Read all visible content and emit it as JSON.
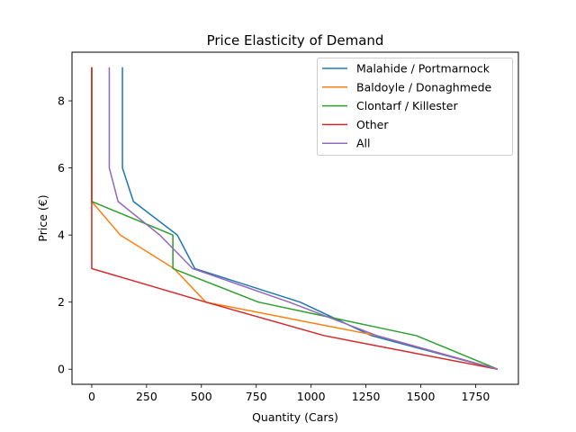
{
  "chart_data": {
    "type": "line",
    "title": "Price Elasticity of Demand",
    "xlabel": "Quantity (Cars)",
    "ylabel": "Price (€)",
    "xlim": [
      -90,
      1945
    ],
    "ylim": [
      -0.45,
      9.45
    ],
    "xticks": [
      0,
      250,
      500,
      750,
      1000,
      1250,
      1500,
      1750
    ],
    "yticks": [
      0,
      2,
      4,
      6,
      8
    ],
    "grid": false,
    "legend_position": "top-right",
    "series": [
      {
        "name": "Malahide / Portmarnock",
        "color": "#1f77b4",
        "points": [
          [
            1850,
            0
          ],
          [
            1275,
            1
          ],
          [
            950,
            2
          ],
          [
            470,
            3
          ],
          [
            390,
            4
          ],
          [
            190,
            5
          ],
          [
            140,
            6
          ],
          [
            140,
            7
          ],
          [
            140,
            8
          ],
          [
            140,
            9
          ]
        ]
      },
      {
        "name": "Baldoyle / Donaghmede",
        "color": "#ff7f0e",
        "points": [
          [
            1850,
            0
          ],
          [
            1300,
            1
          ],
          [
            520,
            2
          ],
          [
            375,
            3
          ],
          [
            130,
            4
          ],
          [
            0,
            5
          ],
          [
            0,
            6
          ],
          [
            0,
            7
          ],
          [
            0,
            8
          ],
          [
            0,
            9
          ]
        ]
      },
      {
        "name": "Clontarf / Killester",
        "color": "#2ca02c",
        "points": [
          [
            1850,
            0
          ],
          [
            1480,
            1
          ],
          [
            760,
            2
          ],
          [
            370,
            3
          ],
          [
            370,
            4
          ],
          [
            0,
            5
          ],
          [
            0,
            6
          ],
          [
            0,
            7
          ],
          [
            0,
            8
          ],
          [
            0,
            9
          ]
        ]
      },
      {
        "name": "Other",
        "color": "#d62728",
        "points": [
          [
            1850,
            0
          ],
          [
            1060,
            1
          ],
          [
            520,
            2
          ],
          [
            0,
            3
          ],
          [
            0,
            4
          ],
          [
            0,
            5
          ],
          [
            0,
            6
          ],
          [
            0,
            7
          ],
          [
            0,
            8
          ],
          [
            0,
            9
          ]
        ]
      },
      {
        "name": "All",
        "color": "#9467bd",
        "points": [
          [
            1850,
            0
          ],
          [
            1300,
            1
          ],
          [
            900,
            2
          ],
          [
            460,
            3
          ],
          [
            310,
            4
          ],
          [
            120,
            5
          ],
          [
            80,
            6
          ],
          [
            80,
            7
          ],
          [
            80,
            8
          ],
          [
            80,
            9
          ]
        ]
      }
    ]
  }
}
